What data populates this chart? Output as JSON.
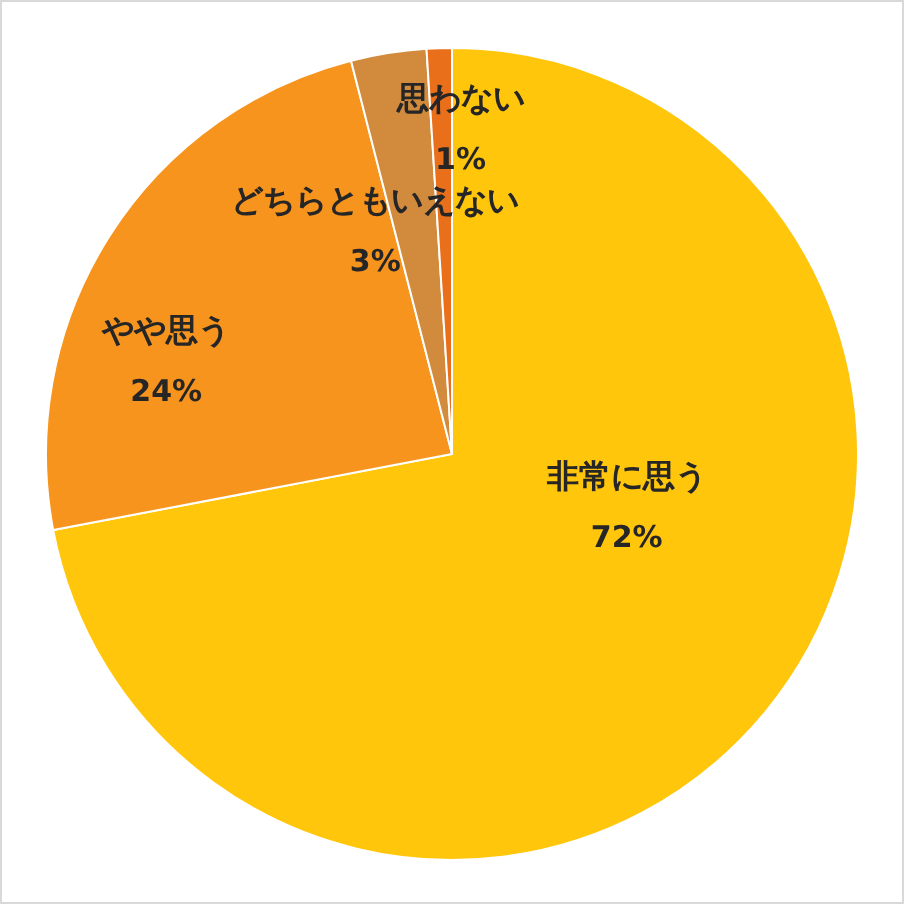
{
  "chart_data": {
    "type": "pie",
    "categories": [
      "非常に思う",
      "やや思う",
      "どちらともいえない",
      "思わない"
    ],
    "values": [
      72,
      24,
      3,
      1
    ],
    "value_labels": [
      "72%",
      "24%",
      "3%",
      "1%"
    ],
    "colors": [
      "#ffc60b",
      "#f7941d",
      "#d28b3d",
      "#ea6f1a"
    ]
  }
}
